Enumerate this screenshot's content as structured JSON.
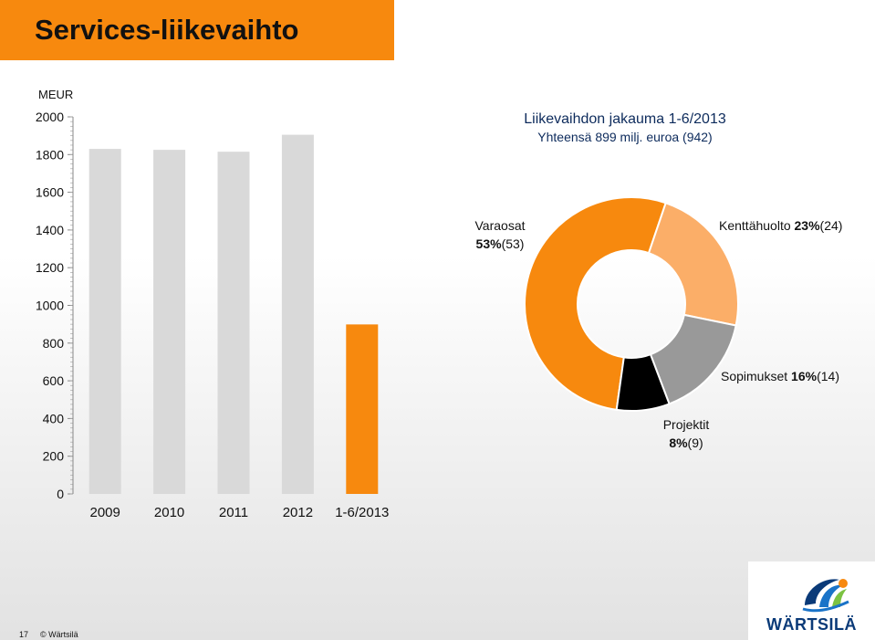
{
  "title": "Services-liikevaihto",
  "footer": {
    "page": "17",
    "copyright": "© Wärtsilä"
  },
  "logo": {
    "text": "WÄRTSILÄ"
  },
  "colors": {
    "orange": "#f7890e",
    "light_orange": "#fbae68",
    "gray": "#999999",
    "black": "#000000",
    "bar_gray": "#d9d9d9"
  },
  "chart_data": [
    {
      "type": "bar",
      "ylabel": "MEUR",
      "ylim": [
        0,
        2000
      ],
      "yticks": [
        0,
        200,
        400,
        600,
        800,
        1000,
        1200,
        1400,
        1600,
        1800,
        2000
      ],
      "categories": [
        "2009",
        "2010",
        "2011",
        "2012",
        "1-6/2013"
      ],
      "values": [
        1830,
        1825,
        1815,
        1905,
        899
      ],
      "bar_colors": [
        "#d9d9d9",
        "#d9d9d9",
        "#d9d9d9",
        "#d9d9d9",
        "#f7890e"
      ]
    },
    {
      "type": "pie",
      "title": "Liikevaihdon jakauma 1-6/2013",
      "subtitle": "Yhteensä 899 milj. euroa (942)",
      "slices": [
        {
          "label": "Varaosat",
          "pct": "53%",
          "prev": "(53)",
          "value": 53,
          "color": "#f7890e"
        },
        {
          "label": "Kenttähuolto",
          "pct": "23%",
          "prev": "(24)",
          "value": 23,
          "color": "#fbae68"
        },
        {
          "label": "Sopimukset",
          "pct": "16%",
          "prev": "(14)",
          "value": 16,
          "color": "#999999"
        },
        {
          "label": "Projektit",
          "pct": "8%",
          "prev": "(9)",
          "value": 8,
          "color": "#000000"
        }
      ]
    }
  ]
}
